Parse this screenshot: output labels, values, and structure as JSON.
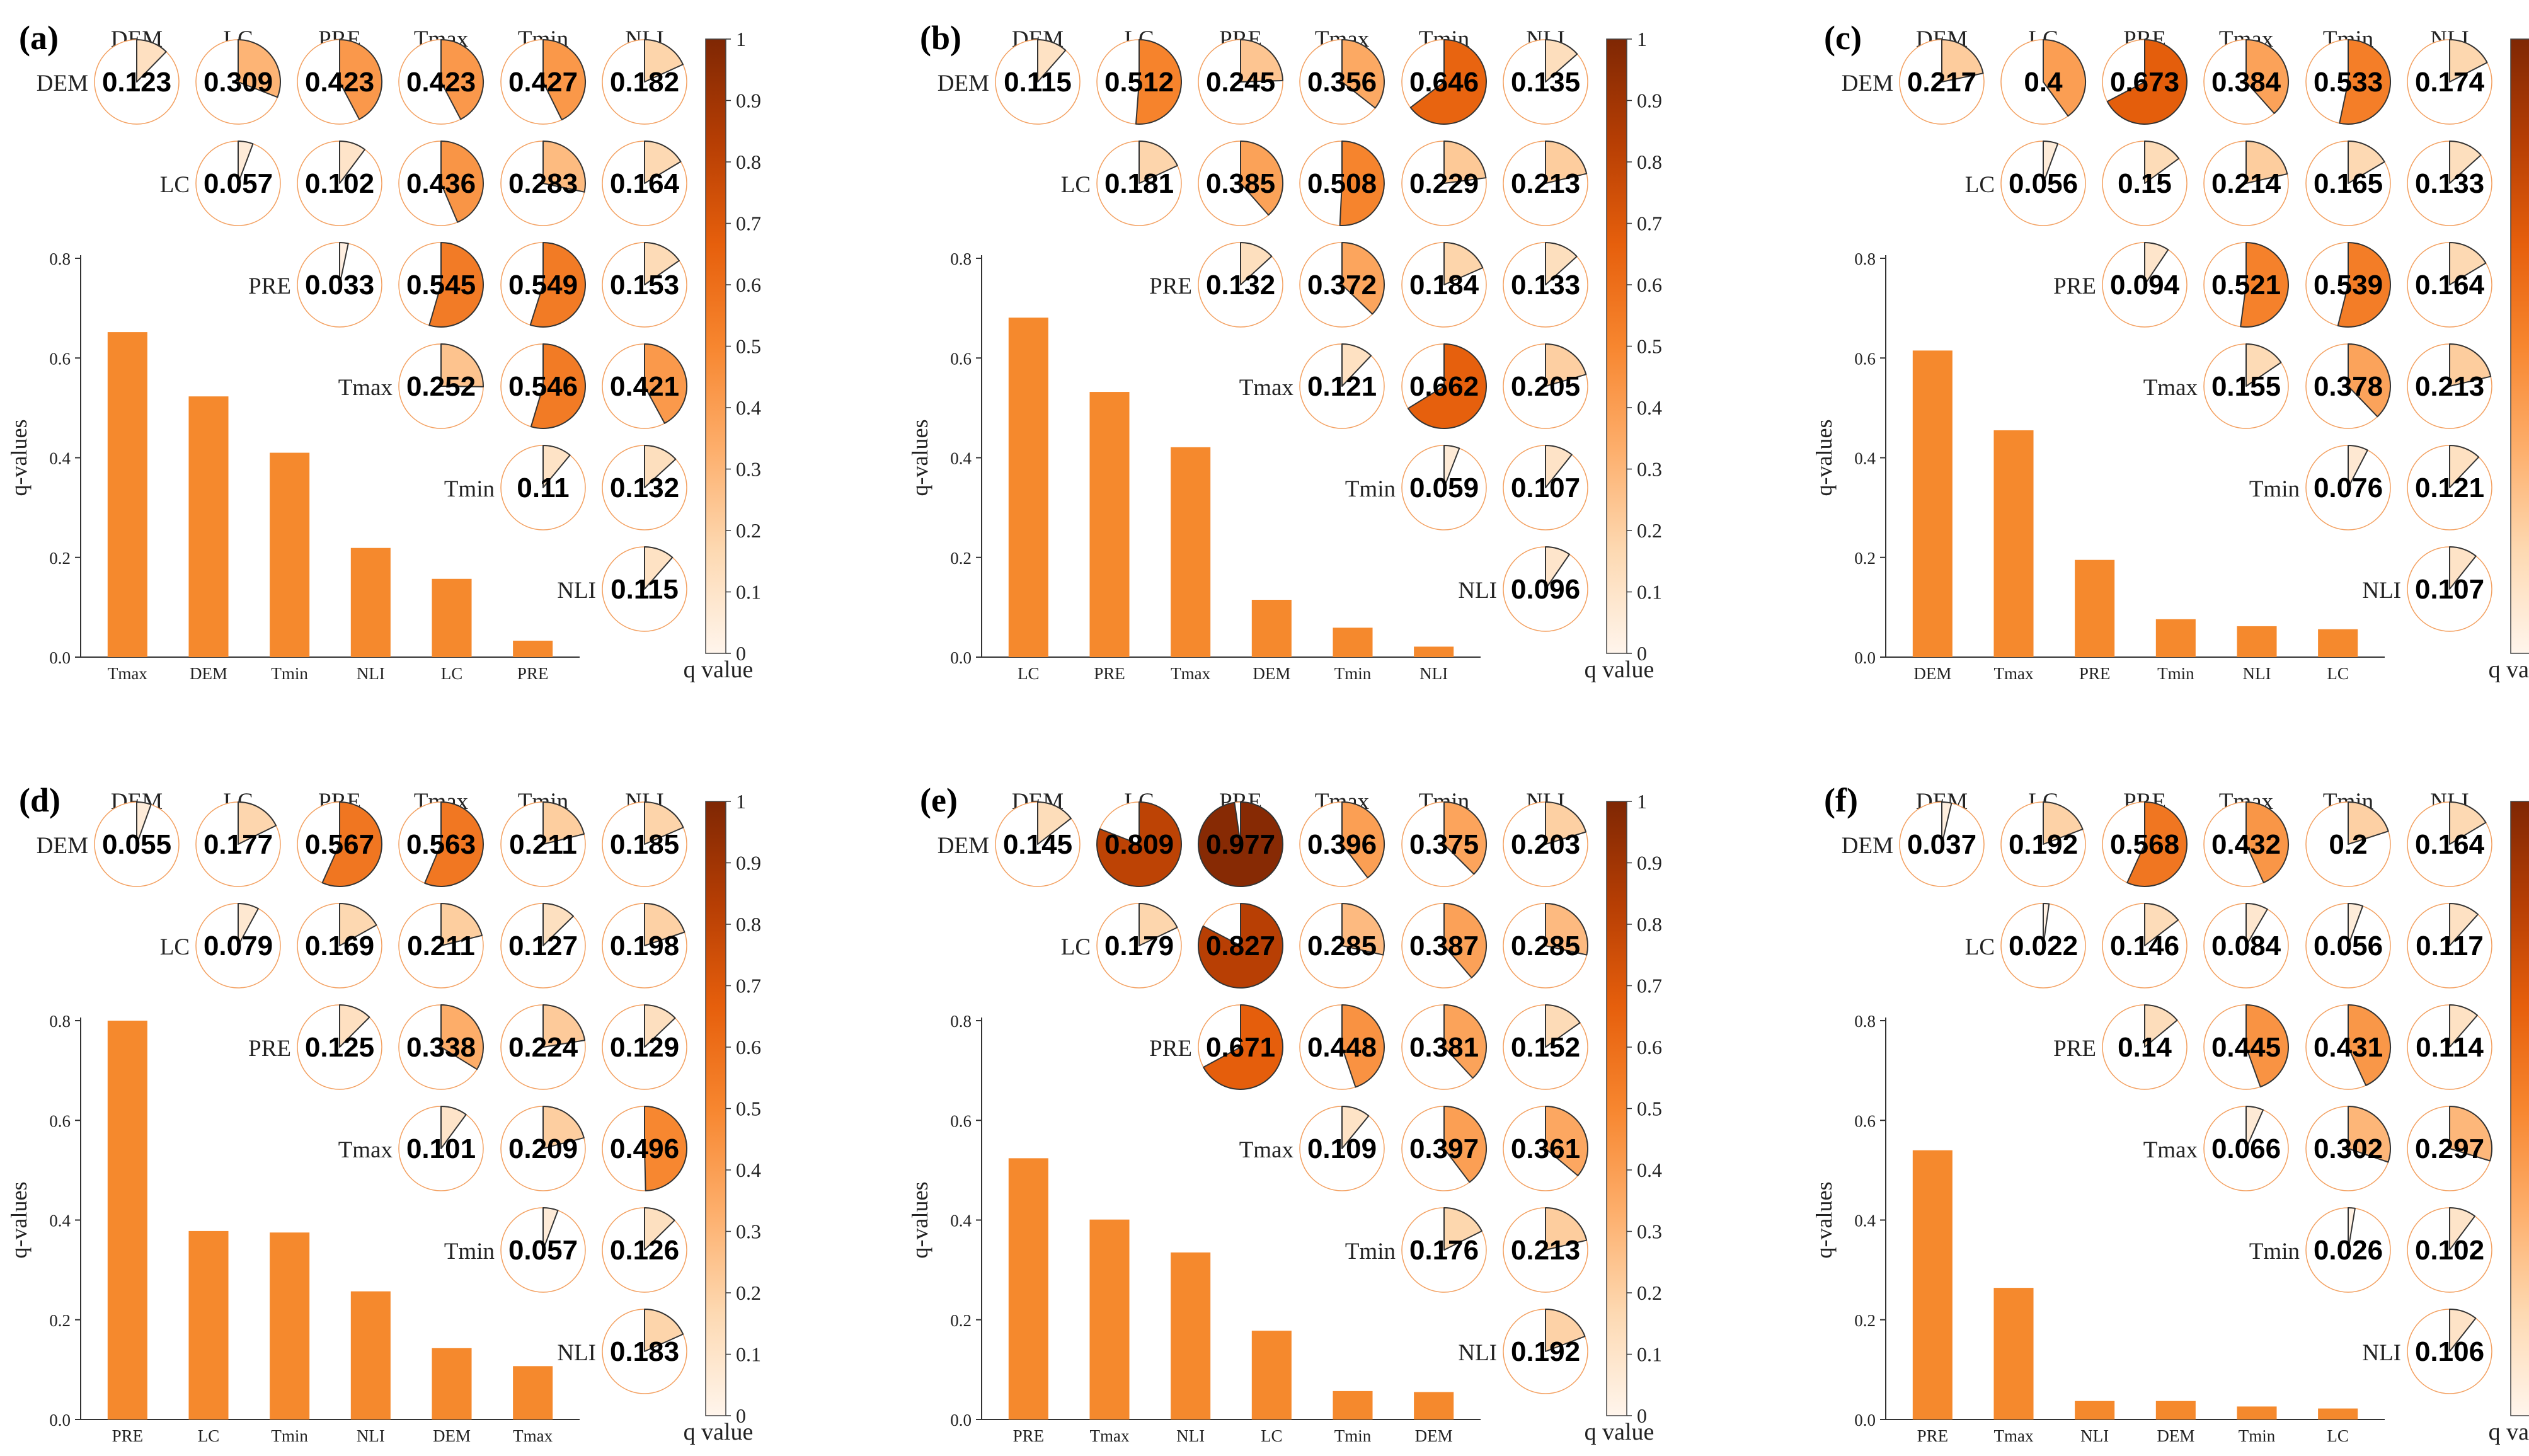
{
  "colors": {
    "bar": "#f5892d",
    "cmap": [
      "#fff5ec",
      "#fdd9b2",
      "#fdae6b",
      "#f7862f",
      "#e65f0c",
      "#b63e04",
      "#7f2704"
    ],
    "pie_outline": "#f3a060"
  },
  "variables": [
    "DEM",
    "LC",
    "PRE",
    "Tmax",
    "Tmin",
    "NLI"
  ],
  "colorbar": {
    "ticks": [
      "0",
      "0.1",
      "0.2",
      "0.3",
      "0.4",
      "0.5",
      "0.6",
      "0.7",
      "0.8",
      "0.9",
      "1"
    ],
    "label": "q value"
  },
  "chart_data": [
    {
      "panel": "(a)",
      "type": "bar",
      "ylabel": "q-values",
      "ylim": [
        0,
        0.8
      ],
      "yticks": [
        "0.0",
        "0.2",
        "0.4",
        "0.6",
        "0.8"
      ],
      "categories": [
        "Tmax",
        "DEM",
        "Tmin",
        "NLI",
        "LC",
        "PRE"
      ],
      "values": [
        0.652,
        0.523,
        0.41,
        0.219,
        0.157,
        0.033
      ],
      "matrix": [
        [
          0.123,
          0.309,
          0.423,
          0.423,
          0.427,
          0.182
        ],
        [
          0.057,
          0.102,
          0.436,
          0.283,
          0.164
        ],
        [
          0.033,
          0.545,
          0.549,
          0.153
        ],
        [
          0.252,
          0.546,
          0.421
        ],
        [
          0.11,
          0.132
        ],
        [
          0.115
        ]
      ]
    },
    {
      "panel": "(b)",
      "type": "bar",
      "ylabel": "q-values",
      "ylim": [
        0,
        0.8
      ],
      "yticks": [
        "0.0",
        "0.2",
        "0.4",
        "0.6",
        "0.8"
      ],
      "categories": [
        "LC",
        "PRE",
        "Tmax",
        "DEM",
        "Tmin",
        "NLI"
      ],
      "values": [
        0.681,
        0.532,
        0.421,
        0.115,
        0.059,
        0.021
      ],
      "matrix": [
        [
          0.115,
          0.512,
          0.245,
          0.356,
          0.646,
          0.135
        ],
        [
          0.181,
          0.385,
          0.508,
          0.229,
          0.213
        ],
        [
          0.132,
          0.372,
          0.184,
          0.133
        ],
        [
          0.121,
          0.662,
          0.205
        ],
        [
          0.059,
          0.107
        ],
        [
          0.096
        ]
      ]
    },
    {
      "panel": "(c)",
      "type": "bar",
      "ylabel": "q-values",
      "ylim": [
        0,
        0.8
      ],
      "yticks": [
        "0.0",
        "0.2",
        "0.4",
        "0.6",
        "0.8"
      ],
      "categories": [
        "DEM",
        "Tmax",
        "PRE",
        "Tmin",
        "NLI",
        "LC"
      ],
      "values": [
        0.615,
        0.455,
        0.195,
        0.076,
        0.062,
        0.056
      ],
      "matrix": [
        [
          0.217,
          0.4,
          0.673,
          0.384,
          0.533,
          0.174
        ],
        [
          0.056,
          0.15,
          0.214,
          0.165,
          0.133
        ],
        [
          0.094,
          0.521,
          0.539,
          0.164
        ],
        [
          0.155,
          0.378,
          0.213
        ],
        [
          0.076,
          0.121
        ],
        [
          0.107
        ]
      ]
    },
    {
      "panel": "(d)",
      "type": "bar",
      "ylabel": "q-values",
      "ylim": [
        0,
        0.8
      ],
      "yticks": [
        "0.0",
        "0.2",
        "0.4",
        "0.6",
        "0.8"
      ],
      "categories": [
        "PRE",
        "LC",
        "Tmin",
        "NLI",
        "DEM",
        "Tmax"
      ],
      "values": [
        0.8,
        0.378,
        0.375,
        0.257,
        0.143,
        0.107
      ],
      "matrix": [
        [
          0.055,
          0.177,
          0.567,
          0.563,
          0.211,
          0.185
        ],
        [
          0.079,
          0.169,
          0.211,
          0.127,
          0.198
        ],
        [
          0.125,
          0.338,
          0.224,
          0.129
        ],
        [
          0.101,
          0.209,
          0.496
        ],
        [
          0.057,
          0.126
        ],
        [
          0.183
        ]
      ]
    },
    {
      "panel": "(e)",
      "type": "bar",
      "ylabel": "q-values",
      "ylim": [
        0,
        0.8
      ],
      "yticks": [
        "0.0",
        "0.2",
        "0.4",
        "0.6",
        "0.8"
      ],
      "categories": [
        "PRE",
        "Tmax",
        "NLI",
        "LC",
        "Tmin",
        "DEM"
      ],
      "values": [
        0.524,
        0.401,
        0.335,
        0.178,
        0.057,
        0.055
      ],
      "matrix": [
        [
          0.145,
          0.809,
          0.977,
          0.396,
          0.375,
          0.203
        ],
        [
          0.179,
          0.827,
          0.285,
          0.387,
          0.285
        ],
        [
          0.671,
          0.448,
          0.381,
          0.152
        ],
        [
          0.109,
          0.397,
          0.361
        ],
        [
          0.176,
          0.213
        ],
        [
          0.192
        ]
      ]
    },
    {
      "panel": "(f)",
      "type": "bar",
      "ylabel": "q-values",
      "ylim": [
        0,
        0.8
      ],
      "yticks": [
        "0.0",
        "0.2",
        "0.4",
        "0.6",
        "0.8"
      ],
      "categories": [
        "PRE",
        "Tmax",
        "NLI",
        "DEM",
        "Tmin",
        "LC"
      ],
      "values": [
        0.54,
        0.264,
        0.037,
        0.037,
        0.026,
        0.022
      ],
      "matrix": [
        [
          0.037,
          0.192,
          0.568,
          0.432,
          0.2,
          0.164
        ],
        [
          0.022,
          0.146,
          0.084,
          0.056,
          0.117
        ],
        [
          0.14,
          0.445,
          0.431,
          0.114
        ],
        [
          0.066,
          0.302,
          0.297
        ],
        [
          0.026,
          0.102
        ],
        [
          0.106
        ]
      ]
    }
  ]
}
